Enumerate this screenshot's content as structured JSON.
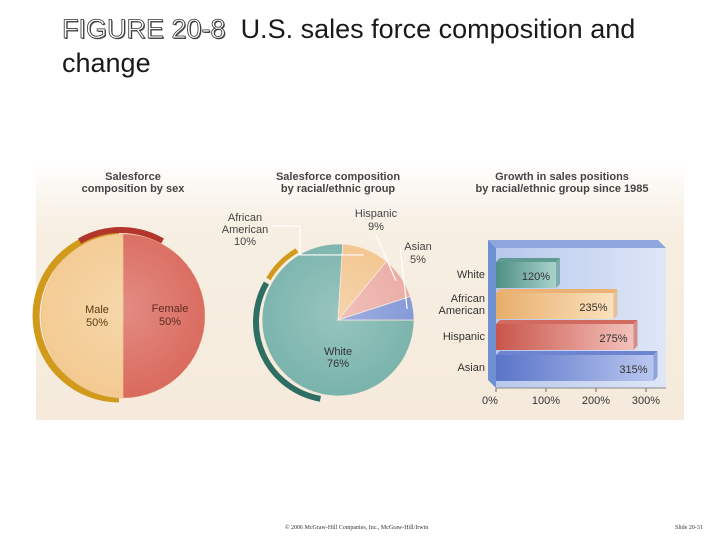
{
  "title": {
    "figure_label": "FIGURE 20-8",
    "text": "U.S. sales force composition and change"
  },
  "footer": {
    "copyright": "© 2006 McGraw-Hill Companies, Inc., McGraw-Hill/Irwin",
    "slide_number": "Slide 20-31"
  },
  "colors": {
    "female": "#d9665a",
    "male": "#f3c98e",
    "white": "#76b2aa",
    "african_american": "#f2c48c",
    "hispanic": "#ebaaa3",
    "asian": "#7f95d6",
    "rim_gold": "#d19a1a",
    "rim_dark_red": "#b2362c",
    "rim_dark_teal": "#2f6e62",
    "panel_blue": "#9db3e2"
  },
  "chart_data": [
    {
      "type": "pie",
      "title": "Salesforce composition by sex",
      "title_lines": [
        "Salesforce",
        "composition by sex"
      ],
      "labels": [
        "Female",
        "Male"
      ],
      "values": [
        50,
        50
      ],
      "value_labels": [
        "50%",
        "50%"
      ]
    },
    {
      "type": "pie",
      "title": "Salesforce composition by racial/ethnic group",
      "title_lines": [
        "Salesforce composition",
        "by racial/ethnic group"
      ],
      "labels": [
        "White",
        "African American",
        "Hispanic",
        "Asian"
      ],
      "label_lines": [
        [
          "White"
        ],
        [
          "African",
          "American"
        ],
        [
          "Hispanic"
        ],
        [
          "Asian"
        ]
      ],
      "values": [
        76,
        10,
        9,
        5
      ],
      "value_labels": [
        "76%",
        "10%",
        "9%",
        "5%"
      ]
    },
    {
      "type": "bar",
      "orientation": "horizontal",
      "title": "Growth in sales positions by racial/ethnic group since 1985",
      "title_lines": [
        "Growth in sales positions",
        "by racial/ethnic group since 1985"
      ],
      "categories": [
        "White",
        "African American",
        "Hispanic",
        "Asian"
      ],
      "category_lines": [
        [
          "White"
        ],
        [
          "African",
          "American"
        ],
        [
          "Hispanic"
        ],
        [
          "Asian"
        ]
      ],
      "values": [
        120,
        235,
        275,
        315
      ],
      "value_labels": [
        "120%",
        "235%",
        "275%",
        "315%"
      ],
      "xlim": [
        0,
        300
      ],
      "xticks": [
        0,
        100,
        200,
        300
      ],
      "xtick_labels": [
        "0%",
        "100%",
        "200%",
        "300%"
      ]
    }
  ]
}
